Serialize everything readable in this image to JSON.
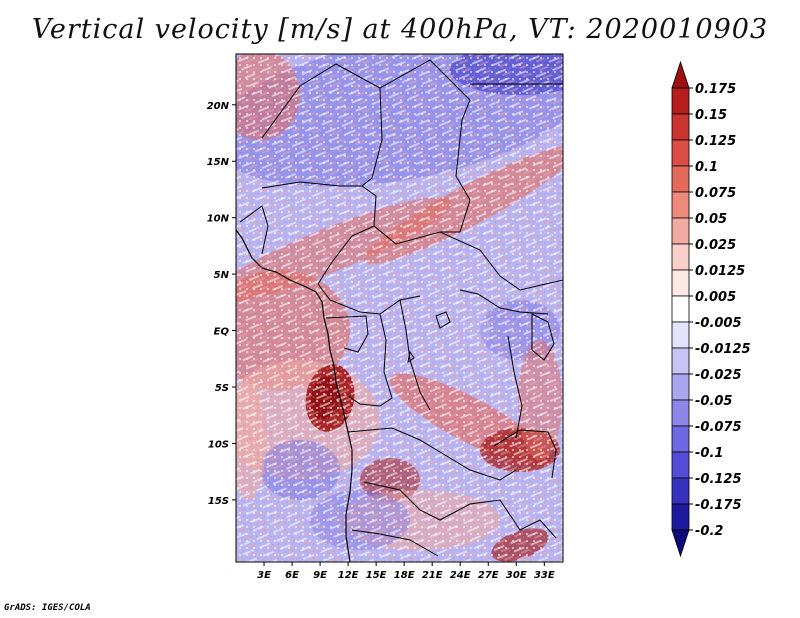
{
  "title": "Vertical velocity [m/s] at 400hPa, VT: 2020010903",
  "credit": "GrADS: IGES/COLA",
  "map": {
    "lon_ticks": [
      "3E",
      "6E",
      "9E",
      "12E",
      "15E",
      "18E",
      "21E",
      "24E",
      "27E",
      "30E",
      "33E"
    ],
    "lat_ticks": [
      "20N",
      "15N",
      "10N",
      "5N",
      "EQ",
      "5S",
      "10S",
      "15S"
    ],
    "field_colors": {
      "strong_up": "#a51c1c",
      "up": "#e46a5c",
      "weak_up": "#f2aaa2",
      "neutral": "#f6eef0",
      "weak_down": "#b9b3f0",
      "down": "#7d78e6",
      "strong_down": "#3f3ac4"
    }
  },
  "colorbar": {
    "labels": [
      "0.175",
      "0.15",
      "0.125",
      "0.1",
      "0.075",
      "0.05",
      "0.025",
      "0.0125",
      "0.005",
      "-0.005",
      "-0.0125",
      "-0.025",
      "-0.05",
      "-0.075",
      "-0.1",
      "-0.125",
      "-0.175",
      "-0.2"
    ],
    "colors": [
      "#9e0f12",
      "#b51d1e",
      "#c93431",
      "#d94e47",
      "#e46a5c",
      "#ed8a7c",
      "#f2aaa2",
      "#f8cfca",
      "#fce9e6",
      "#ffffff",
      "#e5e3fb",
      "#c8c5f5",
      "#aaa6ef",
      "#8c87e9",
      "#6e68e2",
      "#524cd6",
      "#3732bd",
      "#1e1a9e",
      "#0f0a7a"
    ]
  }
}
